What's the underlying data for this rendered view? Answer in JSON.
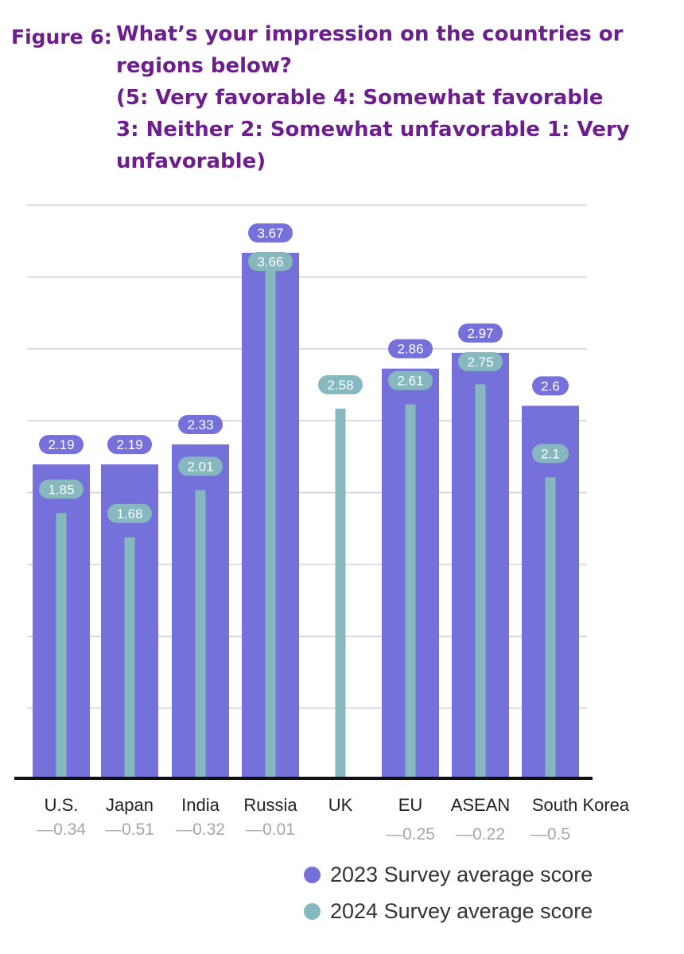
{
  "title": {
    "figure_label": "Figure 6:",
    "lines": [
      "What’s your impression on the countries or",
      "regions below?",
      " (5: Very favorable 4: Somewhat favorable",
      "3: Neither 2: Somewhat unfavorable 1: Very",
      "unfavorable)"
    ]
  },
  "colors": {
    "series_2023": "#7670db",
    "series_2024": "#86b8bf",
    "title": "#6c1f8c",
    "grid": "#d4d4d4",
    "baseline": "#111111",
    "change_text": "#a6a6a6"
  },
  "chart_data": {
    "type": "bar",
    "categories": [
      "U.S.",
      "Japan",
      "India",
      "Russia",
      "UK",
      "EU",
      "ASEAN",
      "South Korea"
    ],
    "series": [
      {
        "name": "2023 Survey average score",
        "values": [
          2.19,
          2.19,
          2.33,
          3.67,
          null,
          2.86,
          2.97,
          2.6
        ]
      },
      {
        "name": "2024 Survey average score",
        "values": [
          1.85,
          1.68,
          2.01,
          3.66,
          2.58,
          2.61,
          2.75,
          2.1
        ]
      }
    ],
    "value_labels_2023": [
      "2.19",
      "2.19",
      "2.33",
      "3.67",
      "",
      "2.86",
      "2.97",
      "2.6"
    ],
    "value_labels_2024": [
      "1.85",
      "1.68",
      "2.01",
      "3.66",
      "2.58",
      "2.61",
      "2.75",
      "2.1"
    ],
    "change_labels": [
      "—0.34",
      "—0.51",
      "—0.32",
      "—0.01",
      "",
      "—0.25",
      "—0.22",
      "—0.5"
    ],
    "ylim": [
      0,
      3.67
    ],
    "grid": true,
    "legend_position": "bottom-right"
  },
  "legend": {
    "items": [
      {
        "label": "2023 Survey average score",
        "color": "#7670db"
      },
      {
        "label": "2024 Survey average score",
        "color": "#86b8bf"
      }
    ]
  }
}
